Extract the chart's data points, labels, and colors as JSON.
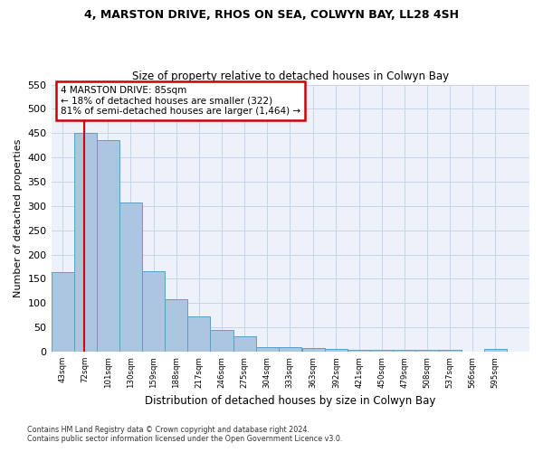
{
  "title1": "4, MARSTON DRIVE, RHOS ON SEA, COLWYN BAY, LL28 4SH",
  "title2": "Size of property relative to detached houses in Colwyn Bay",
  "xlabel": "Distribution of detached houses by size in Colwyn Bay",
  "ylabel": "Number of detached properties",
  "footnote1": "Contains HM Land Registry data © Crown copyright and database right 2024.",
  "footnote2": "Contains public sector information licensed under the Open Government Licence v3.0.",
  "annotation_title": "4 MARSTON DRIVE: 85sqm",
  "annotation_line1": "← 18% of detached houses are smaller (322)",
  "annotation_line2": "81% of semi-detached houses are larger (1,464) →",
  "property_size": 85,
  "bar_edges": [
    43,
    72,
    101,
    130,
    159,
    188,
    217,
    246,
    275,
    304,
    333,
    363,
    392,
    421,
    450,
    479,
    508,
    537,
    566,
    595,
    624
  ],
  "bar_heights": [
    163,
    450,
    435,
    307,
    165,
    107,
    73,
    44,
    32,
    10,
    10,
    8,
    5,
    3,
    3,
    3,
    3,
    3,
    0,
    5
  ],
  "bar_color": "#adc6e0",
  "bar_edge_color": "#5a9fc8",
  "red_line_color": "#dd0000",
  "annotation_box_color": "#cc0000",
  "background_color": "#edf2fa",
  "grid_color": "#c8d4e8",
  "ylim": [
    0,
    550
  ],
  "yticks": [
    0,
    50,
    100,
    150,
    200,
    250,
    300,
    350,
    400,
    450,
    500,
    550
  ]
}
